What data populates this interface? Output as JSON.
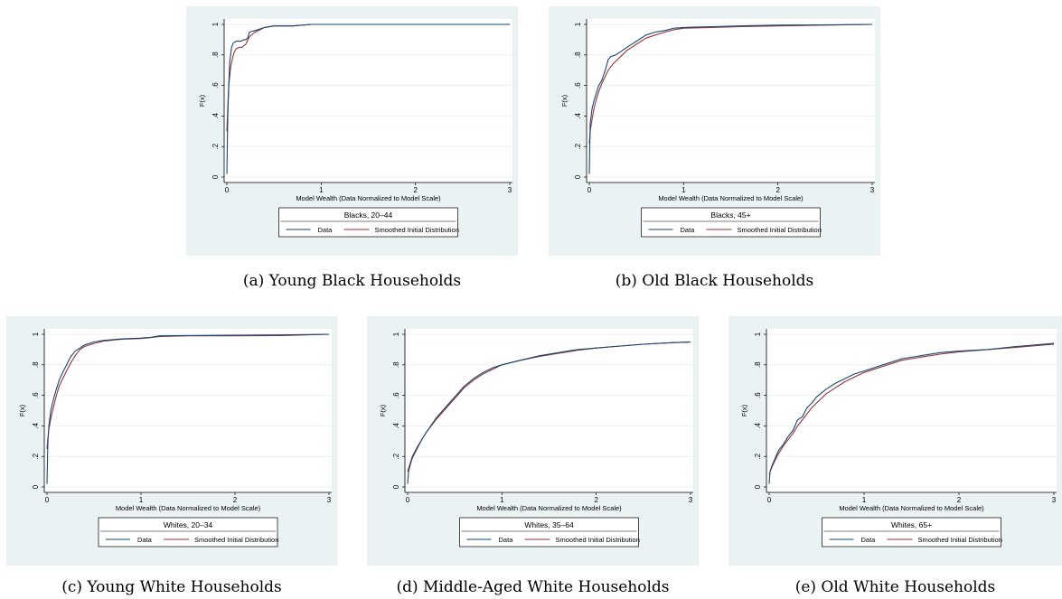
{
  "chart_data": [
    {
      "type": "line",
      "caption": "(a) Young Black Households",
      "legend_title": "Blacks, 20–44",
      "xlabel": "Model Wealth (Data Normalized to Model Scale)",
      "ylabel": "F(x)",
      "xlim": [
        0,
        3
      ],
      "ylim": [
        0,
        1
      ],
      "xticks": [
        "0",
        "1",
        "2",
        "3"
      ],
      "yticks": [
        "0",
        ".2",
        ".4",
        ".6",
        ".8",
        "1"
      ],
      "grid": true,
      "legend_placement": "bottom",
      "series": [
        {
          "name": "Data",
          "color": "#1a476f",
          "x": [
            0,
            0.01,
            0.02,
            0.03,
            0.05,
            0.07,
            0.1,
            0.12,
            0.15,
            0.18,
            0.2,
            0.22,
            0.24,
            0.3,
            0.4,
            0.5,
            0.7,
            0.9,
            1.5,
            3.0
          ],
          "y": [
            0.02,
            0.4,
            0.6,
            0.75,
            0.85,
            0.88,
            0.89,
            0.89,
            0.89,
            0.9,
            0.9,
            0.91,
            0.95,
            0.96,
            0.98,
            0.99,
            0.99,
            1.0,
            1.0,
            1.0
          ]
        },
        {
          "name": "Smoothed Initial Distribution",
          "color": "#90353b",
          "x": [
            0,
            0.01,
            0.02,
            0.04,
            0.06,
            0.08,
            0.1,
            0.13,
            0.16,
            0.2,
            0.24,
            0.3,
            0.4,
            0.5,
            0.7,
            0.9,
            1.5,
            3.0
          ],
          "y": [
            0.3,
            0.45,
            0.6,
            0.72,
            0.78,
            0.82,
            0.84,
            0.85,
            0.85,
            0.87,
            0.92,
            0.95,
            0.98,
            0.99,
            0.99,
            1.0,
            1.0,
            1.0
          ]
        }
      ]
    },
    {
      "type": "line",
      "caption": "(b) Old Black Households",
      "legend_title": "Blacks, 45+",
      "xlabel": "Model Wealth (Data Normalized to Model Scale)",
      "ylabel": "F(x)",
      "xlim": [
        0,
        3
      ],
      "ylim": [
        0,
        1
      ],
      "xticks": [
        "0",
        "1",
        "2",
        "3"
      ],
      "yticks": [
        "0",
        ".2",
        ".4",
        ".6",
        ".8",
        "1"
      ],
      "grid": true,
      "legend_placement": "bottom",
      "series": [
        {
          "name": "Data",
          "color": "#1a476f",
          "x": [
            0,
            0.01,
            0.03,
            0.05,
            0.08,
            0.1,
            0.13,
            0.17,
            0.2,
            0.23,
            0.28,
            0.33,
            0.4,
            0.5,
            0.6,
            0.7,
            0.8,
            0.9,
            1.0,
            1.3,
            1.6,
            2.0,
            2.5,
            3.0
          ],
          "y": [
            0.02,
            0.35,
            0.45,
            0.5,
            0.56,
            0.6,
            0.63,
            0.7,
            0.77,
            0.79,
            0.8,
            0.82,
            0.85,
            0.89,
            0.93,
            0.95,
            0.96,
            0.975,
            0.98,
            0.985,
            0.99,
            0.995,
            0.997,
            1.0
          ]
        },
        {
          "name": "Smoothed Initial Distribution",
          "color": "#90353b",
          "x": [
            0,
            0.01,
            0.03,
            0.05,
            0.08,
            0.1,
            0.13,
            0.17,
            0.2,
            0.25,
            0.3,
            0.35,
            0.4,
            0.5,
            0.6,
            0.7,
            0.8,
            0.9,
            1.0,
            1.3,
            1.6,
            2.0,
            2.5,
            3.0
          ],
          "y": [
            0.22,
            0.3,
            0.38,
            0.45,
            0.52,
            0.56,
            0.61,
            0.66,
            0.7,
            0.74,
            0.77,
            0.8,
            0.83,
            0.87,
            0.91,
            0.93,
            0.95,
            0.965,
            0.975,
            0.98,
            0.985,
            0.99,
            0.995,
            1.0
          ]
        }
      ]
    },
    {
      "type": "line",
      "caption": "(c) Young White Households",
      "legend_title": "Whites, 20–34",
      "xlabel": "Model Wealth (Data Normalized to Model Scale)",
      "ylabel": "F(x)",
      "xlim": [
        0,
        3
      ],
      "ylim": [
        0,
        1
      ],
      "xticks": [
        "0",
        "1",
        "2",
        "3"
      ],
      "yticks": [
        "0",
        ".2",
        ".4",
        ".6",
        ".8",
        "1"
      ],
      "grid": true,
      "legend_placement": "bottom",
      "series": [
        {
          "name": "Data",
          "color": "#1a476f",
          "x": [
            0,
            0.01,
            0.02,
            0.04,
            0.06,
            0.08,
            0.1,
            0.13,
            0.16,
            0.2,
            0.25,
            0.3,
            0.35,
            0.4,
            0.5,
            0.6,
            0.7,
            0.8,
            0.9,
            1.0,
            1.1,
            1.2,
            1.5,
            2.0,
            2.5,
            3.0
          ],
          "y": [
            0.02,
            0.3,
            0.4,
            0.5,
            0.55,
            0.6,
            0.64,
            0.7,
            0.74,
            0.79,
            0.85,
            0.89,
            0.91,
            0.93,
            0.95,
            0.96,
            0.965,
            0.97,
            0.972,
            0.975,
            0.98,
            0.99,
            0.992,
            0.994,
            0.996,
            1.0
          ]
        },
        {
          "name": "Smoothed Initial Distribution",
          "color": "#90353b",
          "x": [
            0,
            0.01,
            0.02,
            0.04,
            0.06,
            0.08,
            0.1,
            0.13,
            0.16,
            0.2,
            0.25,
            0.3,
            0.35,
            0.4,
            0.5,
            0.6,
            0.7,
            0.8,
            0.9,
            1.0,
            1.1,
            1.2,
            1.5,
            2.0,
            2.5,
            3.0
          ],
          "y": [
            0.25,
            0.32,
            0.38,
            0.45,
            0.5,
            0.55,
            0.6,
            0.66,
            0.7,
            0.75,
            0.81,
            0.86,
            0.9,
            0.92,
            0.94,
            0.955,
            0.962,
            0.968,
            0.97,
            0.972,
            0.978,
            0.985,
            0.99,
            0.99,
            0.992,
            1.0
          ]
        }
      ]
    },
    {
      "type": "line",
      "caption": "(d) Middle-Aged White Households",
      "legend_title": "Whites, 35–64",
      "xlabel": "Model Wealth (Data Normalized to Model Scale)",
      "ylabel": "F(x)",
      "xlim": [
        0,
        3
      ],
      "ylim": [
        0,
        1
      ],
      "xticks": [
        "0",
        "1",
        "2",
        "3"
      ],
      "yticks": [
        "0",
        ".2",
        ".4",
        ".6",
        ".8",
        "1"
      ],
      "grid": true,
      "legend_placement": "bottom",
      "series": [
        {
          "name": "Data",
          "color": "#1a476f",
          "x": [
            0,
            0.01,
            0.03,
            0.05,
            0.1,
            0.15,
            0.2,
            0.3,
            0.4,
            0.5,
            0.6,
            0.7,
            0.8,
            0.9,
            1.0,
            1.2,
            1.4,
            1.6,
            1.8,
            2.0,
            2.2,
            2.5,
            2.8,
            3.0
          ],
          "y": [
            0.02,
            0.1,
            0.15,
            0.19,
            0.25,
            0.31,
            0.36,
            0.45,
            0.52,
            0.59,
            0.66,
            0.71,
            0.75,
            0.78,
            0.8,
            0.83,
            0.86,
            0.88,
            0.9,
            0.91,
            0.92,
            0.935,
            0.945,
            0.95
          ]
        },
        {
          "name": "Smoothed Initial Distribution",
          "color": "#90353b",
          "x": [
            0,
            0.01,
            0.03,
            0.05,
            0.1,
            0.15,
            0.2,
            0.3,
            0.4,
            0.5,
            0.6,
            0.7,
            0.8,
            0.9,
            1.0,
            1.2,
            1.4,
            1.6,
            1.8,
            2.0,
            2.2,
            2.5,
            2.8,
            3.0
          ],
          "y": [
            0.1,
            0.12,
            0.16,
            0.2,
            0.26,
            0.31,
            0.36,
            0.44,
            0.51,
            0.58,
            0.65,
            0.7,
            0.74,
            0.77,
            0.8,
            0.83,
            0.855,
            0.875,
            0.895,
            0.91,
            0.92,
            0.935,
            0.945,
            0.95
          ]
        }
      ]
    },
    {
      "type": "line",
      "caption": "(e) Old White Households",
      "legend_title": "Whites, 65+",
      "xlabel": "Model Wealth (Data Normalized to Model Scale)",
      "ylabel": "F(x)",
      "xlim": [
        0,
        3
      ],
      "ylim": [
        0,
        1
      ],
      "xticks": [
        "0",
        "1",
        "2",
        "3"
      ],
      "yticks": [
        "0",
        ".2",
        ".4",
        ".6",
        ".8",
        "1"
      ],
      "grid": true,
      "legend_placement": "bottom",
      "series": [
        {
          "name": "Data",
          "color": "#1a476f",
          "x": [
            0,
            0.01,
            0.03,
            0.05,
            0.1,
            0.15,
            0.2,
            0.25,
            0.3,
            0.35,
            0.4,
            0.45,
            0.5,
            0.6,
            0.7,
            0.8,
            0.9,
            1.0,
            1.2,
            1.4,
            1.6,
            1.8,
            2.0,
            2.3,
            2.6,
            2.8,
            3.0
          ],
          "y": [
            0.02,
            0.1,
            0.14,
            0.17,
            0.24,
            0.28,
            0.33,
            0.37,
            0.44,
            0.46,
            0.52,
            0.55,
            0.59,
            0.64,
            0.68,
            0.71,
            0.74,
            0.76,
            0.8,
            0.84,
            0.86,
            0.88,
            0.89,
            0.9,
            0.92,
            0.93,
            0.94
          ]
        },
        {
          "name": "Smoothed Initial Distribution",
          "color": "#90353b",
          "x": [
            0,
            0.01,
            0.03,
            0.05,
            0.1,
            0.15,
            0.2,
            0.25,
            0.3,
            0.35,
            0.4,
            0.45,
            0.5,
            0.6,
            0.7,
            0.8,
            0.9,
            1.0,
            1.2,
            1.4,
            1.6,
            1.8,
            2.0,
            2.3,
            2.6,
            2.8,
            3.0
          ],
          "y": [
            0.08,
            0.1,
            0.13,
            0.16,
            0.22,
            0.27,
            0.31,
            0.35,
            0.4,
            0.44,
            0.48,
            0.52,
            0.55,
            0.61,
            0.65,
            0.69,
            0.72,
            0.75,
            0.79,
            0.83,
            0.85,
            0.87,
            0.885,
            0.9,
            0.915,
            0.925,
            0.935
          ]
        }
      ]
    }
  ]
}
